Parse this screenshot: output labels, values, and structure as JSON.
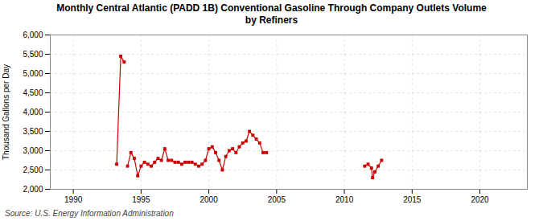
{
  "chart_data": {
    "type": "line",
    "title": "Monthly Central Atlantic (PADD 1B) Conventional Gasoline Through Company Outlets Volume",
    "subtitle": "by Refiners",
    "caption": "Source: U.S. Energy Information Administration",
    "ylabel": "Thousand Gallons per Day",
    "xlim": [
      1988.3,
      2023.5
    ],
    "xticks": [
      1990,
      1995,
      2000,
      2005,
      2010,
      2015,
      2020
    ],
    "ylim": [
      2000,
      6000
    ],
    "yticks": [
      {
        "value": 2000,
        "label": "2,000"
      },
      {
        "value": 2500,
        "label": "2,500"
      },
      {
        "value": 3000,
        "label": "3,000"
      },
      {
        "value": 3500,
        "label": "3,500"
      },
      {
        "value": 4000,
        "label": "4,000"
      },
      {
        "value": 4500,
        "label": "4,500"
      },
      {
        "value": 5000,
        "label": "5,000"
      },
      {
        "value": 5500,
        "label": "5,500"
      },
      {
        "value": 6000,
        "label": "6,000"
      }
    ],
    "grid": true,
    "marker": "square",
    "series": [
      {
        "color": "#cc0000",
        "x": [
          1993.2,
          1993.5,
          1993.75
        ],
        "values": [
          2650,
          5450,
          5300
        ]
      },
      {
        "color": "#cc0000",
        "x": [
          1994.0,
          1994.25,
          1994.5,
          1994.75,
          1995.0,
          1995.25,
          1995.5,
          1995.75,
          1996.0,
          1996.25,
          1996.5,
          1996.75,
          1997.0,
          1997.25,
          1997.5,
          1997.75,
          1998.0,
          1998.25,
          1998.5,
          1998.75,
          1999.0,
          1999.25,
          1999.5,
          1999.75,
          2000.0,
          2000.25,
          2000.5,
          2000.75,
          2001.0,
          2001.25,
          2001.5,
          2001.75,
          2002.0,
          2002.25,
          2002.5,
          2002.75,
          2003.0,
          2003.25,
          2003.5,
          2003.75,
          2004.0,
          2004.25
        ],
        "values": [
          2600,
          2950,
          2800,
          2350,
          2600,
          2700,
          2650,
          2600,
          2700,
          2800,
          2750,
          3050,
          2750,
          2750,
          2700,
          2700,
          2650,
          2700,
          2700,
          2700,
          2650,
          2600,
          2650,
          2750,
          3050,
          3100,
          2950,
          2750,
          2500,
          2850,
          3000,
          3050,
          2950,
          3100,
          3200,
          3250,
          3500,
          3400,
          3300,
          3200,
          2950,
          2950
        ]
      },
      {
        "color": "#cc0000",
        "x": [
          2011.5,
          2011.75,
          2012.0,
          2012.08,
          2012.25,
          2012.5,
          2012.75
        ],
        "values": [
          2600,
          2650,
          2550,
          2300,
          2450,
          2600,
          2750
        ]
      }
    ]
  }
}
